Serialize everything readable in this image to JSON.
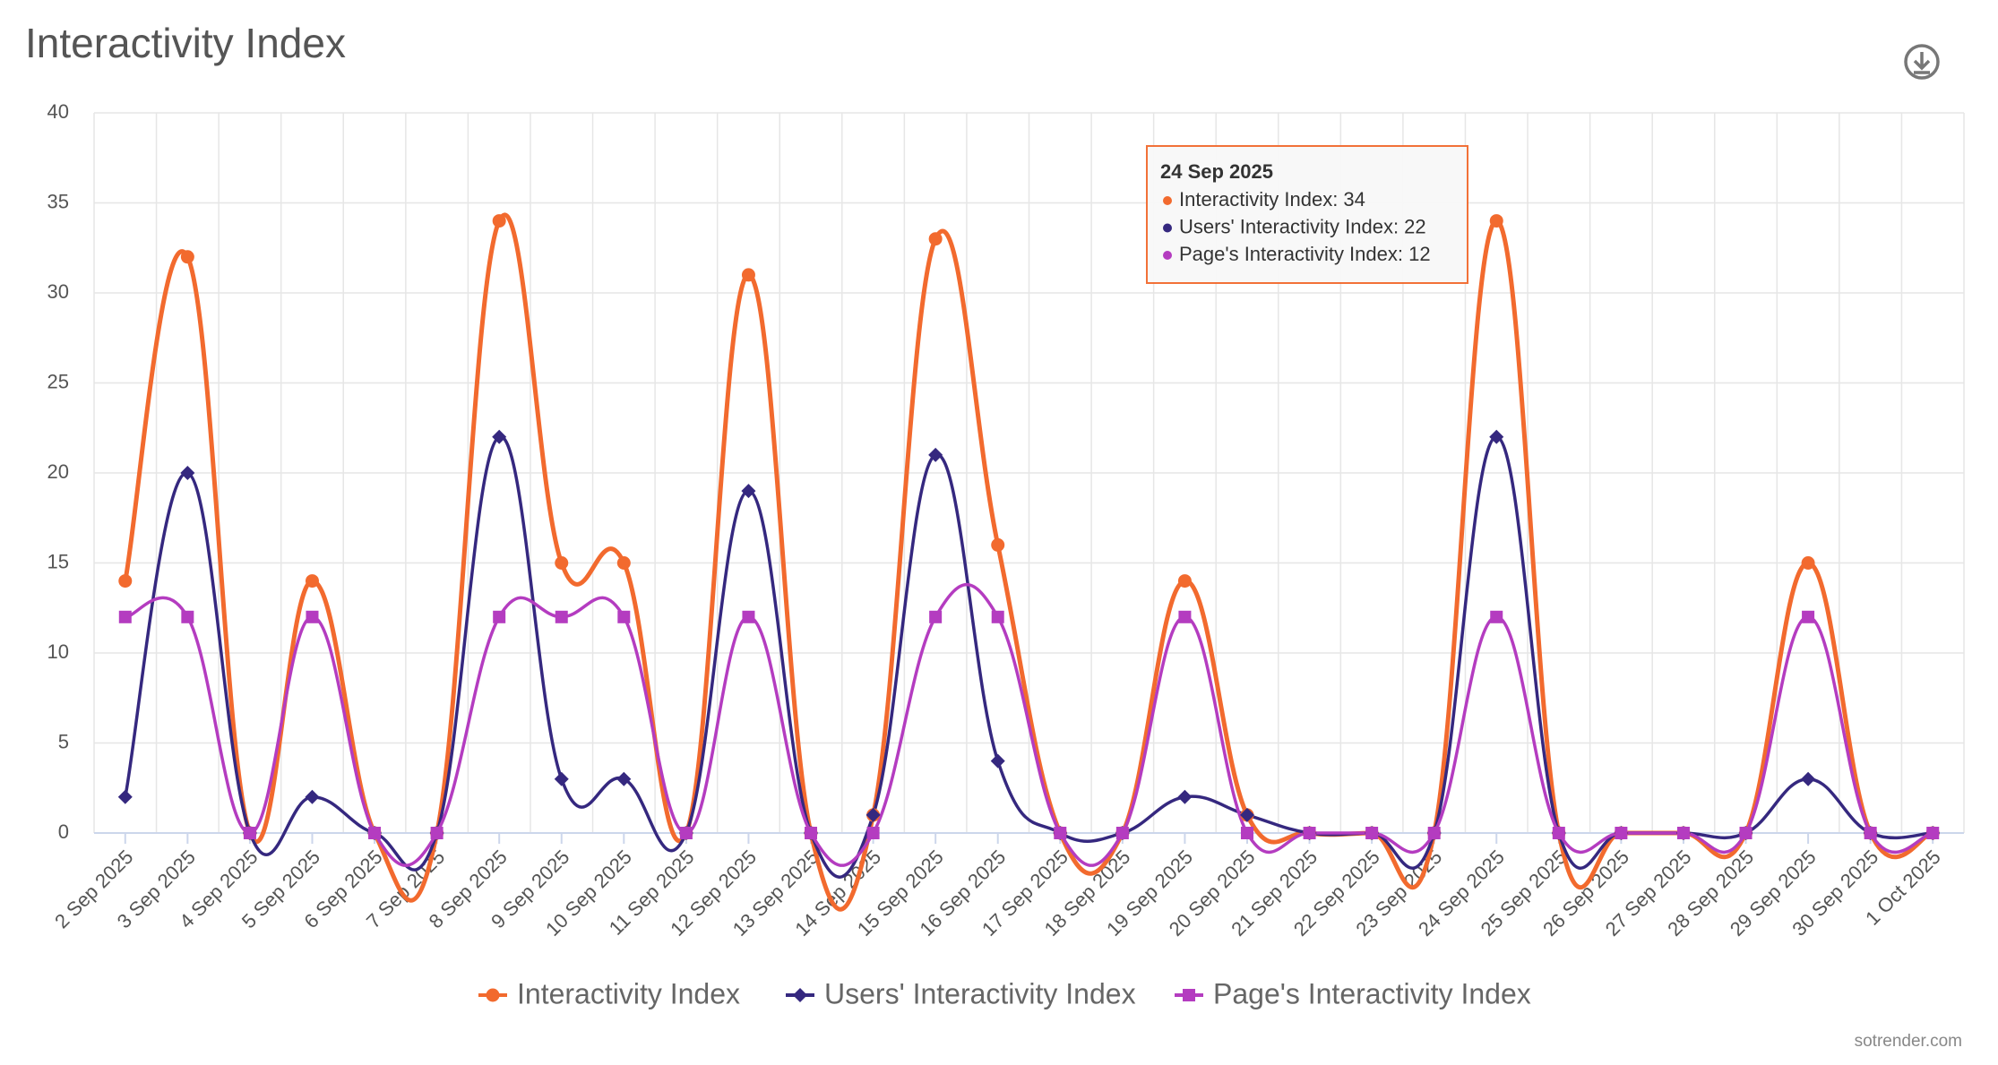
{
  "chart_data": {
    "type": "spline",
    "title": "Interactivity Index",
    "categories": [
      "2 Sep 2025",
      "3 Sep 2025",
      "4 Sep 2025",
      "5 Sep 2025",
      "6 Sep 2025",
      "7 Sep 2025",
      "8 Sep 2025",
      "9 Sep 2025",
      "10 Sep 2025",
      "11 Sep 2025",
      "12 Sep 2025",
      "13 Sep 2025",
      "14 Sep 2025",
      "15 Sep 2025",
      "16 Sep 2025",
      "17 Sep 2025",
      "18 Sep 2025",
      "19 Sep 2025",
      "20 Sep 2025",
      "21 Sep 2025",
      "22 Sep 2025",
      "23 Sep 2025",
      "24 Sep 2025",
      "25 Sep 2025",
      "26 Sep 2025",
      "27 Sep 2025",
      "28 Sep 2025",
      "29 Sep 2025",
      "30 Sep 2025",
      "1 Oct 2025"
    ],
    "series": [
      {
        "name": "Interactivity Index",
        "color": "#f26a2e",
        "marker": "circle",
        "values": [
          14,
          32,
          0,
          14,
          0,
          0,
          34,
          15,
          15,
          0,
          31,
          0,
          1,
          33,
          16,
          0,
          0,
          14,
          1,
          0,
          0,
          0,
          34,
          0,
          0,
          0,
          0,
          15,
          0,
          0
        ]
      },
      {
        "name": "Users' Interactivity Index",
        "color": "#35287f",
        "marker": "diamond",
        "values": [
          2,
          20,
          0,
          2,
          0,
          0,
          22,
          3,
          3,
          0,
          19,
          0,
          1,
          21,
          4,
          0,
          0,
          2,
          1,
          0,
          0,
          0,
          22,
          0,
          0,
          0,
          0,
          3,
          0,
          0
        ]
      },
      {
        "name": "Page's Interactivity Index",
        "color": "#b43cc0",
        "marker": "square",
        "values": [
          12,
          12,
          0,
          12,
          0,
          0,
          12,
          12,
          12,
          0,
          12,
          0,
          0,
          12,
          12,
          0,
          0,
          12,
          0,
          0,
          0,
          0,
          12,
          0,
          0,
          0,
          0,
          12,
          0,
          0
        ]
      }
    ],
    "ylim": [
      0,
      40
    ],
    "yticks": [
      0,
      5,
      10,
      15,
      20,
      25,
      30,
      35,
      40
    ],
    "grid": true,
    "xgrid": true,
    "legend": "bottom",
    "tooltip": {
      "title": "24 Sep 2025",
      "lines": [
        "Interactivity Index: 34",
        "Users' Interactivity Index: 22",
        "Page's Interactivity Index: 12"
      ]
    },
    "credit": "sotrender.com"
  }
}
